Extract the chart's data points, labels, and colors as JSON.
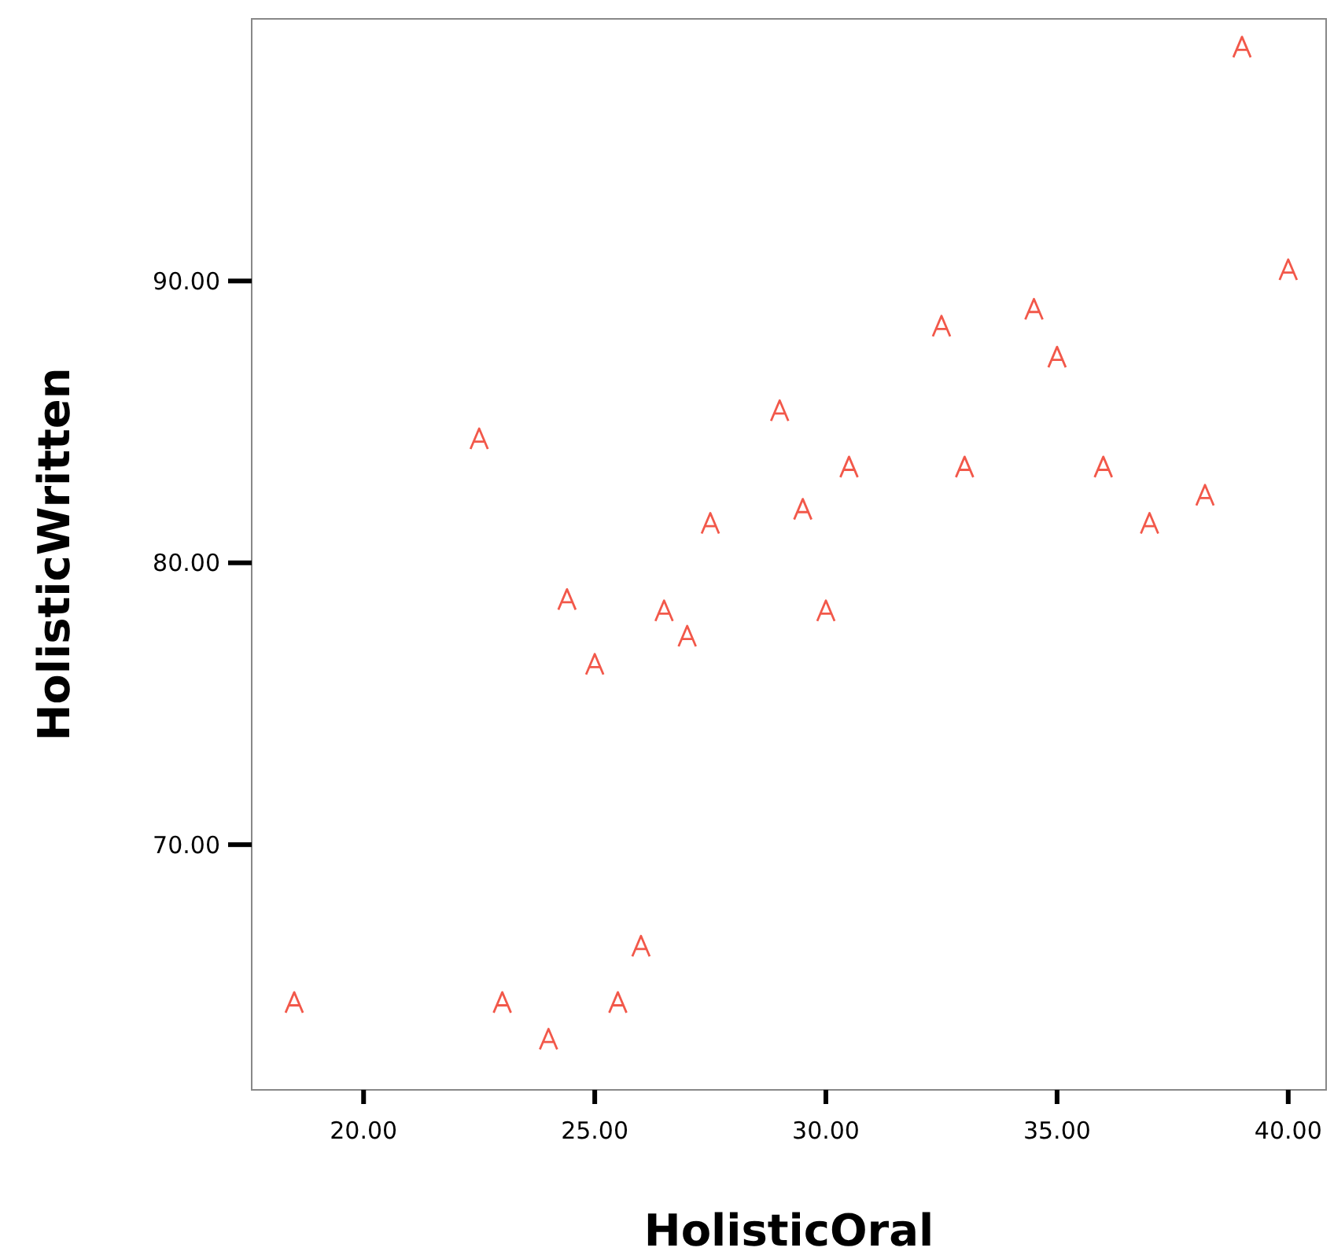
{
  "chart_data": {
    "type": "scatter",
    "xlabel": "HolisticOral",
    "ylabel": "HolisticWritten",
    "xlim": [
      17.58,
      40.82
    ],
    "ylim": [
      61.3,
      99.3
    ],
    "xticks": [
      {
        "value": 20,
        "label": "20.00"
      },
      {
        "value": 25,
        "label": "25.00"
      },
      {
        "value": 30,
        "label": "30.00"
      },
      {
        "value": 35,
        "label": "35.00"
      },
      {
        "value": 40,
        "label": "40.00"
      }
    ],
    "yticks": [
      {
        "value": 70,
        "label": "70.00"
      },
      {
        "value": 80,
        "label": "80.00"
      },
      {
        "value": 90,
        "label": "90.00"
      }
    ],
    "grid": false,
    "series": [
      {
        "color": "#f2584a",
        "x": [
          18.5,
          22.5,
          23,
          24,
          24.4,
          25,
          25.5,
          26,
          26.5,
          27,
          27.5,
          29,
          29.5,
          30,
          30.5,
          32.5,
          33,
          34.5,
          35,
          36,
          37,
          38.2,
          39,
          40
        ],
        "values": [
          64.4,
          84.4,
          64.4,
          63.1,
          78.7,
          76.4,
          64.4,
          66.4,
          78.3,
          77.4,
          81.4,
          85.4,
          81.9,
          78.3,
          83.4,
          88.4,
          83.4,
          89.0,
          87.3,
          83.4,
          81.4,
          82.4,
          98.3,
          90.4
        ]
      }
    ]
  }
}
